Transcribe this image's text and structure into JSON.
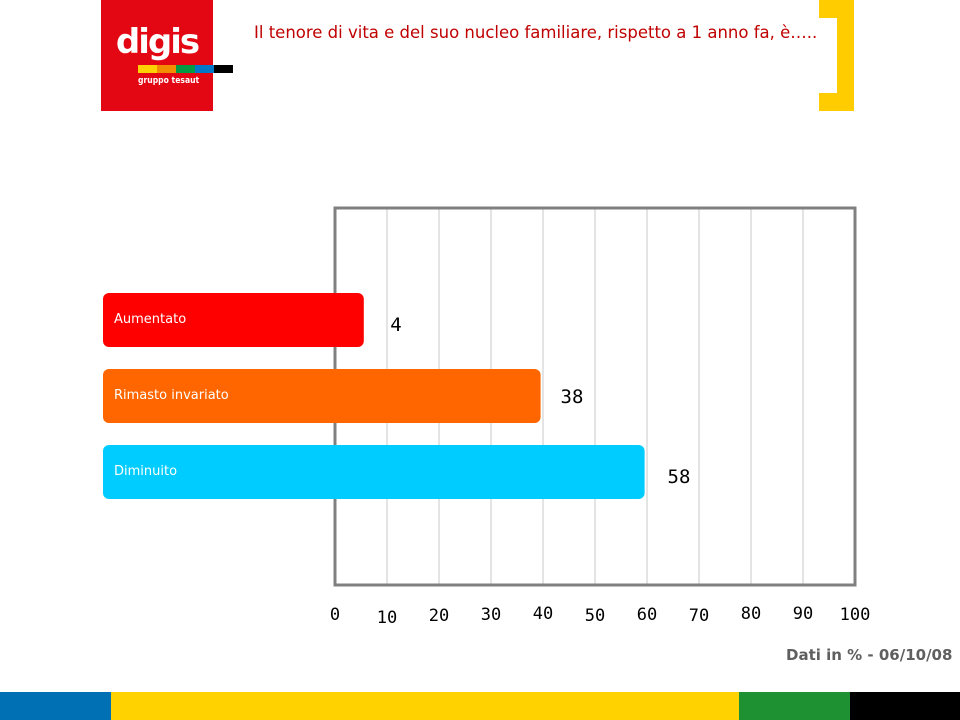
{
  "logo": {
    "text": "digis",
    "subtitle": "gruppo tesaut",
    "strip_colors": [
      "#ffd100",
      "#f28c00",
      "#009a44",
      "#0077c8",
      "#000000"
    ]
  },
  "title": "Il tenore di vita e del suo nucleo familiare, rispetto a 1 anno fa, è…..",
  "footnote": "Dati in % - 06/10/08",
  "colors": {
    "accent_yellow": "#ffcc00",
    "title_red": "#c00000",
    "logo_red": "#e30613"
  },
  "bottom_band_colors": [
    "#0070b4",
    "#ffd200",
    "#1e9133",
    "#000000"
  ],
  "chart_data": {
    "type": "bar",
    "orientation": "horizontal",
    "categories": [
      "Aumentato",
      "Rimasto invariato",
      "Diminuito"
    ],
    "values": [
      4,
      38,
      58
    ],
    "bar_colors": [
      "#ff0000",
      "#ff6600",
      "#00ccff"
    ],
    "xlim": [
      0,
      100
    ],
    "xticks": [
      0,
      10,
      20,
      30,
      40,
      50,
      60,
      70,
      80,
      90,
      100
    ],
    "grid": true
  }
}
